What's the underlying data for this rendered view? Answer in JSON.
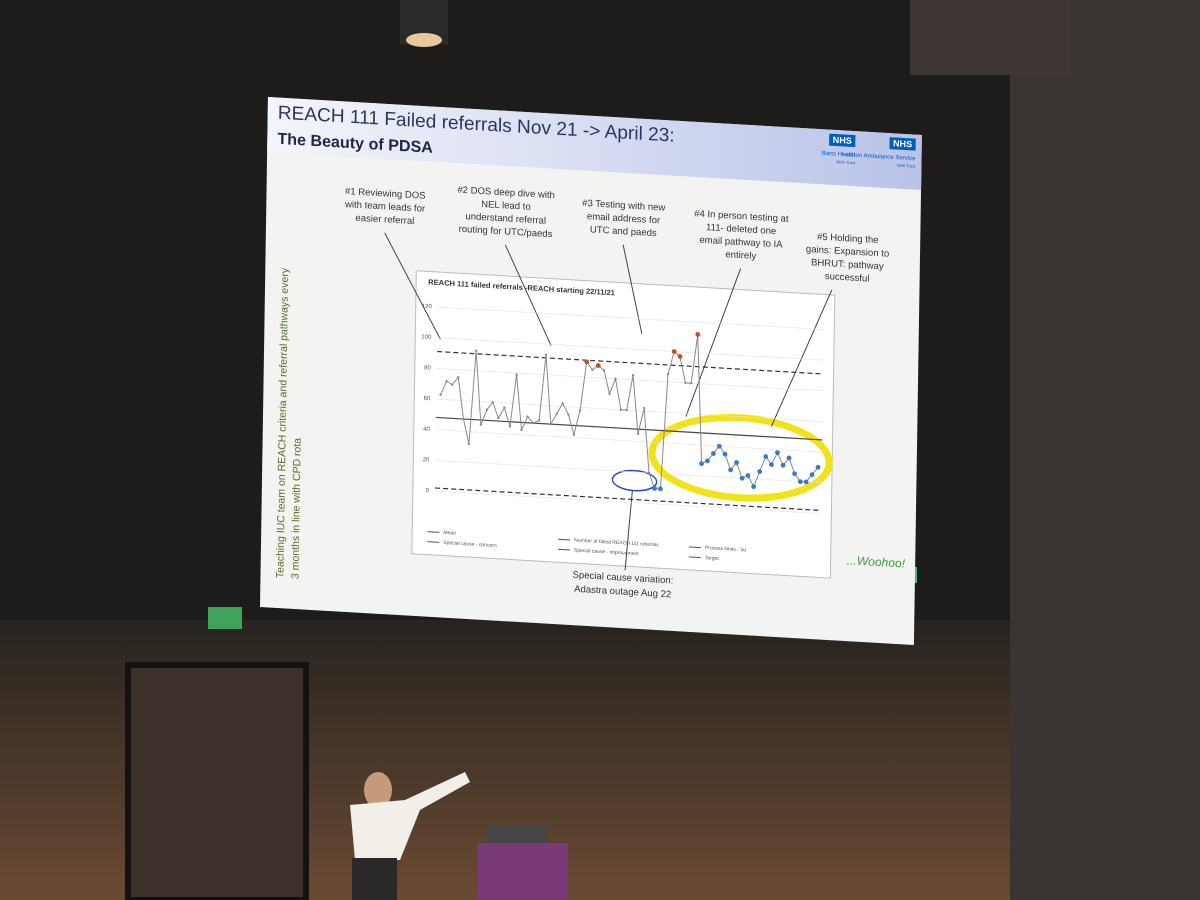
{
  "slide": {
    "title": "REACH 111 Failed referrals Nov 21 -> April 23:",
    "subtitle": "The Beauty of PDSA",
    "logos": [
      {
        "mark": "NHS",
        "name": "Barts Health",
        "sub": "NHS Trust"
      },
      {
        "mark": "NHS",
        "name": "London Ambulance Service",
        "sub": "NHS Trust"
      }
    ],
    "side_text": [
      "Teaching IUC team on REACH criteria and referral pathways every",
      "3 months in line with CPD rota"
    ],
    "annotations": [
      [
        "#1 Reviewing DOS",
        "with team leads for",
        "easier referral"
      ],
      [
        "#2 DOS deep dive with",
        "NEL lead to",
        "understand referral",
        "routing for UTC/paeds"
      ],
      [
        "#3 Testing with new",
        "email address for",
        "UTC and paeds"
      ],
      [
        "#4 In person testing at",
        "111- deleted one",
        "email pathway to IA",
        "entirely"
      ],
      [
        "#5 Holding the",
        "gains: Expansion to",
        "BHRUT: pathway",
        "successful"
      ]
    ],
    "footnote": [
      "Special cause variation:",
      "Adastra outage Aug 22"
    ],
    "cheer": "...Woohoo!"
  },
  "chart": {
    "type": "line",
    "title": "REACH 111 failed referrals -REACH starting 22/11/21",
    "ylim": [
      0,
      120
    ],
    "yticks": [
      0,
      20,
      40,
      60,
      80,
      100,
      120
    ],
    "values": [
      63,
      72,
      70,
      75,
      48,
      32,
      93,
      45,
      55,
      60,
      50,
      57,
      45,
      79,
      43,
      52,
      48,
      50,
      93,
      48,
      55,
      62,
      55,
      42,
      58,
      90,
      85,
      88,
      85,
      70,
      80,
      60,
      60,
      83,
      45,
      62,
      20,
      10,
      10,
      85,
      100,
      97,
      80,
      80,
      112,
      28,
      30,
      35,
      40,
      35,
      25,
      30,
      20,
      22,
      15,
      25,
      35,
      30,
      38,
      30,
      35,
      25,
      20,
      20,
      25,
      30
    ],
    "mean": 48,
    "upper_limit": 91,
    "lower_limit": 2,
    "line_color": "#8a8a8a",
    "legend": [
      "Mean",
      "Number of failed REACH 111 referrals",
      "Process limits - 3σ",
      "Special cause - concern",
      "Special cause - improvement",
      "Target"
    ]
  }
}
